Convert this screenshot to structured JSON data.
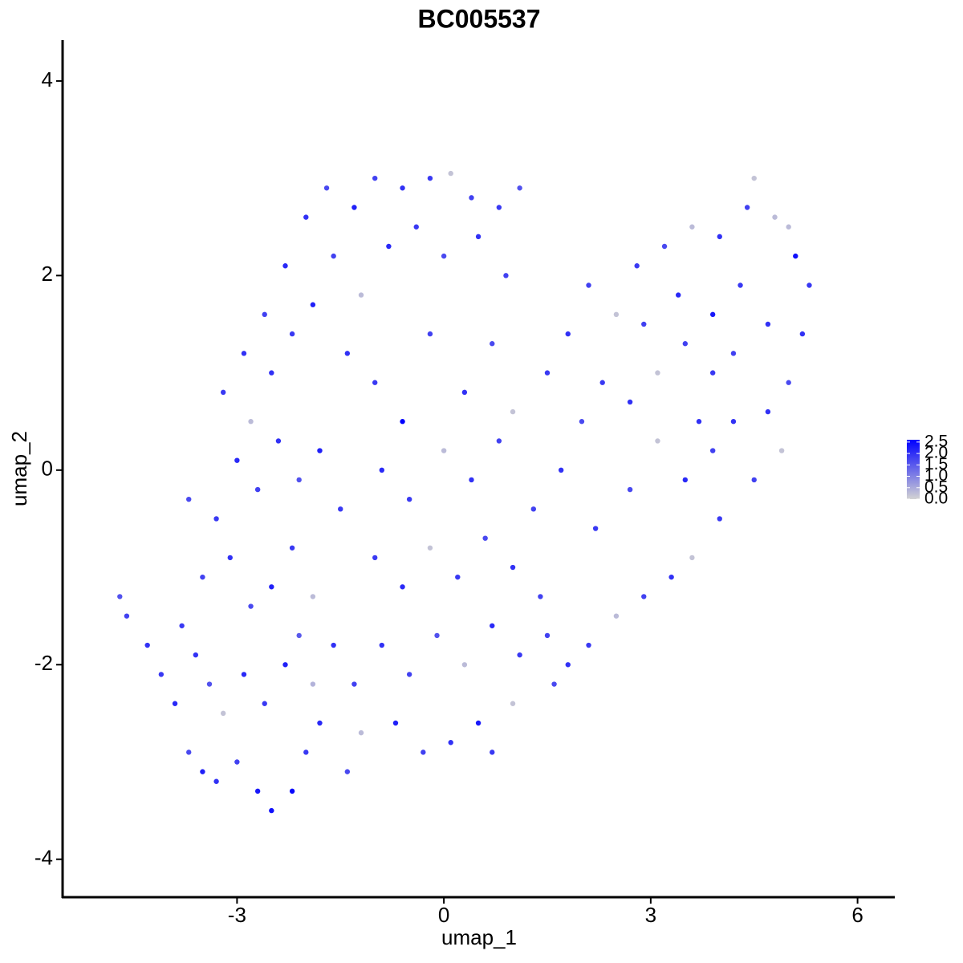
{
  "chart_data": {
    "type": "scatter",
    "title": "BC005537",
    "xlabel": "umap_1",
    "ylabel": "umap_2",
    "xlim": [
      -5.53,
      6.54
    ],
    "ylim": [
      -4.39,
      4.42
    ],
    "xticks": [
      -3,
      0,
      3,
      6
    ],
    "yticks": [
      -4,
      -2,
      0,
      2,
      4
    ],
    "color_low": "#D3D3D3",
    "color_high": "#0000FF",
    "clim": [
      0,
      2.6
    ],
    "cticks": [
      {
        "value": 0,
        "label": "0.0"
      },
      0.5,
      {
        "value": 1,
        "label": "1.0"
      },
      1.5,
      {
        "value": 2,
        "label": "2.0"
      },
      2.5
    ],
    "x": [
      -4.7,
      -4.6,
      -4.3,
      -4.1,
      -3.9,
      -3.7,
      -3.5,
      -3.3,
      -3.0,
      -2.7,
      -2.5,
      -2.2,
      -2.0,
      -1.8,
      -1.4,
      -1.2,
      -3.8,
      -3.6,
      -3.4,
      -3.2,
      -2.9,
      -2.6,
      -2.3,
      -2.1,
      -1.9,
      -3.5,
      -3.1,
      -2.8,
      -2.5,
      -2.2,
      -1.9,
      -1.6,
      -1.3,
      -3.7,
      -3.3,
      -3.0,
      -2.7,
      -2.4,
      -2.1,
      -1.8,
      -1.5,
      -3.2,
      -2.9,
      -2.6,
      -2.3,
      -2.0,
      -1.7,
      -1.3,
      -1.0,
      -0.6,
      -0.2,
      0.1,
      0.4,
      0.8,
      1.1,
      -2.8,
      -2.5,
      -2.2,
      -1.9,
      -1.6,
      -1.2,
      -0.8,
      -0.4,
      0.0,
      0.5,
      0.9,
      -1.4,
      -1.0,
      -0.6,
      -0.2,
      0.3,
      0.7,
      1.0,
      -0.9,
      -0.5,
      0.0,
      0.4,
      0.8,
      -1.0,
      -0.6,
      -0.2,
      0.2,
      0.6,
      1.0,
      1.4,
      -0.9,
      -0.5,
      -0.1,
      0.3,
      0.7,
      1.1,
      1.5,
      1.8,
      -0.7,
      -0.3,
      0.1,
      0.5,
      0.7,
      1.0,
      1.6,
      2.1,
      2.5,
      2.9,
      3.3,
      3.6,
      4.0,
      1.3,
      1.7,
      2.2,
      2.7,
      3.1,
      3.5,
      3.9,
      1.5,
      1.8,
      2.1,
      2.5,
      2.8,
      3.2,
      3.6,
      4.0,
      4.4,
      4.5,
      4.8,
      5.1,
      5.3,
      5.2,
      5.0,
      4.7,
      4.9,
      4.5,
      4.2,
      3.9,
      3.5,
      3.1,
      2.7,
      2.3,
      2.0,
      3.4,
      3.9,
      4.3,
      4.7,
      5.0,
      4.2,
      3.7,
      2.9
    ],
    "y": [
      -1.3,
      -1.5,
      -1.8,
      -2.1,
      -2.4,
      -2.9,
      -3.1,
      -3.2,
      -3.0,
      -3.3,
      -3.5,
      -3.3,
      -2.9,
      -2.6,
      -3.1,
      -2.7,
      -1.6,
      -1.9,
      -2.2,
      -2.5,
      -2.1,
      -2.4,
      -2.0,
      -1.7,
      -2.2,
      -1.1,
      -0.9,
      -1.4,
      -1.2,
      -0.8,
      -1.3,
      -1.8,
      -2.2,
      -0.3,
      -0.5,
      0.1,
      -0.2,
      0.3,
      -0.1,
      0.2,
      -0.4,
      0.8,
      1.2,
      1.6,
      2.1,
      2.6,
      2.9,
      2.7,
      3.0,
      2.9,
      3.0,
      3.05,
      2.8,
      2.7,
      2.9,
      0.5,
      1.0,
      1.4,
      1.7,
      2.2,
      1.8,
      2.3,
      2.5,
      2.2,
      2.4,
      2.0,
      1.2,
      0.9,
      0.5,
      1.4,
      0.8,
      1.3,
      0.6,
      0.0,
      -0.3,
      0.2,
      -0.1,
      0.3,
      -0.9,
      -1.2,
      -0.8,
      -1.1,
      -0.7,
      -1.0,
      -1.3,
      -1.8,
      -2.1,
      -1.7,
      -2.0,
      -1.6,
      -1.9,
      -1.7,
      -2.0,
      -2.6,
      -2.9,
      -2.8,
      -2.6,
      -2.9,
      -2.4,
      -2.2,
      -1.8,
      -1.5,
      -1.3,
      -1.1,
      -0.9,
      -0.5,
      -0.4,
      0.0,
      -0.6,
      -0.2,
      0.3,
      -0.1,
      0.2,
      1.0,
      1.4,
      1.9,
      1.6,
      2.1,
      2.3,
      2.5,
      2.4,
      2.7,
      3.0,
      2.6,
      2.2,
      1.9,
      1.4,
      0.9,
      0.6,
      0.2,
      -0.1,
      0.5,
      1.0,
      1.3,
      1.0,
      0.7,
      0.9,
      0.5,
      1.8,
      1.6,
      1.9,
      1.5,
      2.5,
      1.2,
      0.5,
      1.5
    ],
    "values": [
      1.6,
      1.8,
      2.0,
      1.9,
      2.1,
      1.7,
      2.2,
      2.0,
      1.8,
      2.3,
      2.4,
      2.5,
      1.9,
      2.1,
      1.7,
      0.3,
      1.9,
      2.0,
      1.6,
      0.2,
      2.1,
      1.9,
      2.2,
      1.5,
      0.4,
      1.8,
      2.0,
      1.7,
      2.2,
      1.9,
      0.3,
      2.0,
      1.8,
      1.7,
      1.9,
      2.1,
      1.8,
      2.0,
      1.6,
      2.2,
      1.9,
      1.9,
      2.0,
      1.8,
      2.1,
      2.0,
      1.7,
      2.2,
      1.8,
      2.0,
      1.9,
      0.2,
      1.8,
      1.9,
      1.6,
      0.3,
      2.0,
      1.9,
      2.2,
      1.8,
      0.3,
      2.1,
      1.9,
      1.7,
      2.0,
      1.8,
      2.0,
      1.9,
      2.6,
      1.8,
      2.0,
      1.7,
      0.2,
      2.1,
      1.9,
      0.3,
      2.0,
      1.8,
      1.9,
      2.1,
      0.2,
      1.9,
      1.7,
      2.0,
      1.8,
      2.0,
      1.8,
      1.6,
      0.3,
      2.1,
      1.9,
      1.8,
      2.0,
      2.2,
      1.8,
      2.0,
      2.3,
      1.9,
      0.2,
      1.7,
      1.9,
      0.3,
      1.8,
      2.0,
      0.2,
      1.9,
      1.8,
      2.0,
      1.9,
      1.7,
      0.2,
      2.1,
      1.8,
      1.9,
      2.0,
      1.8,
      0.2,
      1.9,
      1.7,
      0.3,
      2.0,
      1.8,
      0.2,
      0.3,
      2.4,
      1.9,
      2.0,
      1.7,
      2.0,
      0.2,
      1.8,
      2.0,
      1.9,
      1.8,
      0.2,
      2.0,
      1.9,
      1.7,
      2.1,
      2.3,
      1.9,
      2.0,
      0.3,
      1.8,
      2.0,
      1.8
    ]
  }
}
